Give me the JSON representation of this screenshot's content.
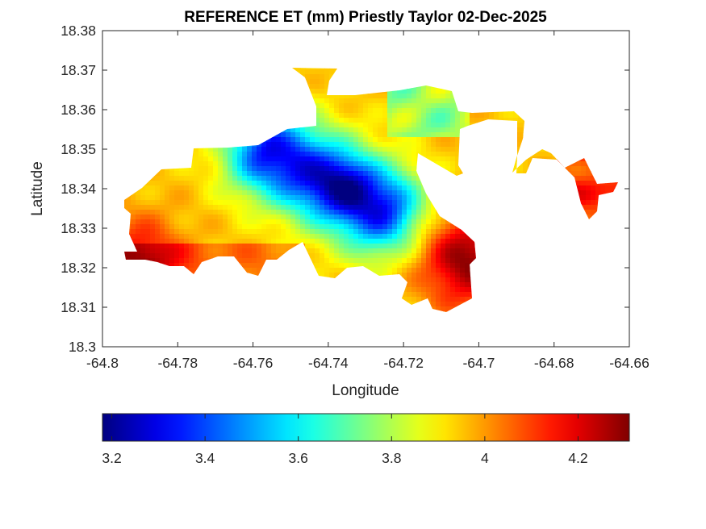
{
  "chart_data": {
    "type": "heatmap",
    "title": "REFERENCE ET (mm) Priestly Taylor 02-Dec-2025",
    "xlabel": "Longitude",
    "ylabel": "Latitude",
    "xlim": [
      -64.8,
      -64.66
    ],
    "ylim": [
      18.3,
      18.38
    ],
    "xticks": [
      -64.8,
      -64.78,
      -64.76,
      -64.74,
      -64.72,
      -64.7,
      -64.68,
      -64.66
    ],
    "xtick_labels": [
      "-64.8",
      "-64.78",
      "-64.76",
      "-64.74",
      "-64.72",
      "-64.7",
      "-64.68",
      "-64.66"
    ],
    "yticks": [
      18.3,
      18.31,
      18.32,
      18.33,
      18.34,
      18.35,
      18.36,
      18.37,
      18.38
    ],
    "ytick_labels": [
      "18.3",
      "18.31",
      "18.32",
      "18.33",
      "18.34",
      "18.35",
      "18.36",
      "18.37",
      "18.38"
    ],
    "grid": false,
    "colormap": "jet",
    "colorbar": {
      "orientation": "horizontal",
      "location": "below",
      "range": [
        3.18,
        4.31
      ],
      "ticks": [
        3.2,
        3.4,
        3.6,
        3.8,
        4.0,
        4.2
      ],
      "tick_labels": [
        "3.2",
        "3.4",
        "3.6",
        "3.8",
        "4",
        "4.2"
      ]
    },
    "field_features": [
      {
        "description": "minimum ET core",
        "lon": -64.735,
        "lat": 18.341,
        "value": 3.2
      },
      {
        "description": "low ET ridge",
        "lon": -64.745,
        "lat": 18.347,
        "value": 3.35
      },
      {
        "description": "high ET south-east",
        "lon": -64.703,
        "lat": 18.322,
        "value": 4.3
      },
      {
        "description": "high ET south-west",
        "lon": -64.79,
        "lat": 18.322,
        "value": 4.2
      },
      {
        "description": "east island",
        "lon": -64.668,
        "lat": 18.338,
        "value": 4.15
      },
      {
        "description": "central plateau",
        "lon": -64.77,
        "lat": 18.335,
        "value": 3.95
      }
    ]
  },
  "colors": {
    "axis": "#262626",
    "background": "#ffffff"
  }
}
